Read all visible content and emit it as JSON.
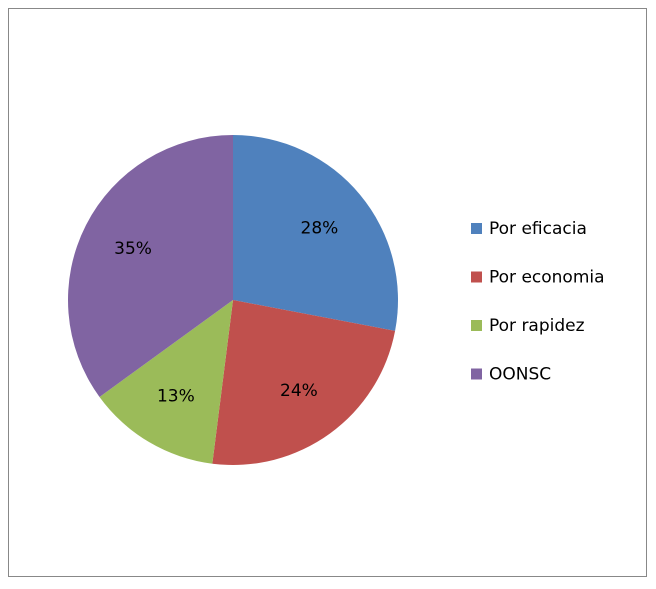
{
  "chart_data": {
    "type": "pie",
    "categories": [
      "Por eficacia",
      "Por economia",
      "Por rapidez",
      "OONSC"
    ],
    "values": [
      28,
      24,
      13,
      35
    ],
    "value_labels": [
      "28%",
      "24%",
      "13%",
      "35%"
    ],
    "colors": [
      "#4f81bd",
      "#c0504d",
      "#9bbb59",
      "#8064a2"
    ],
    "legend": "right"
  }
}
